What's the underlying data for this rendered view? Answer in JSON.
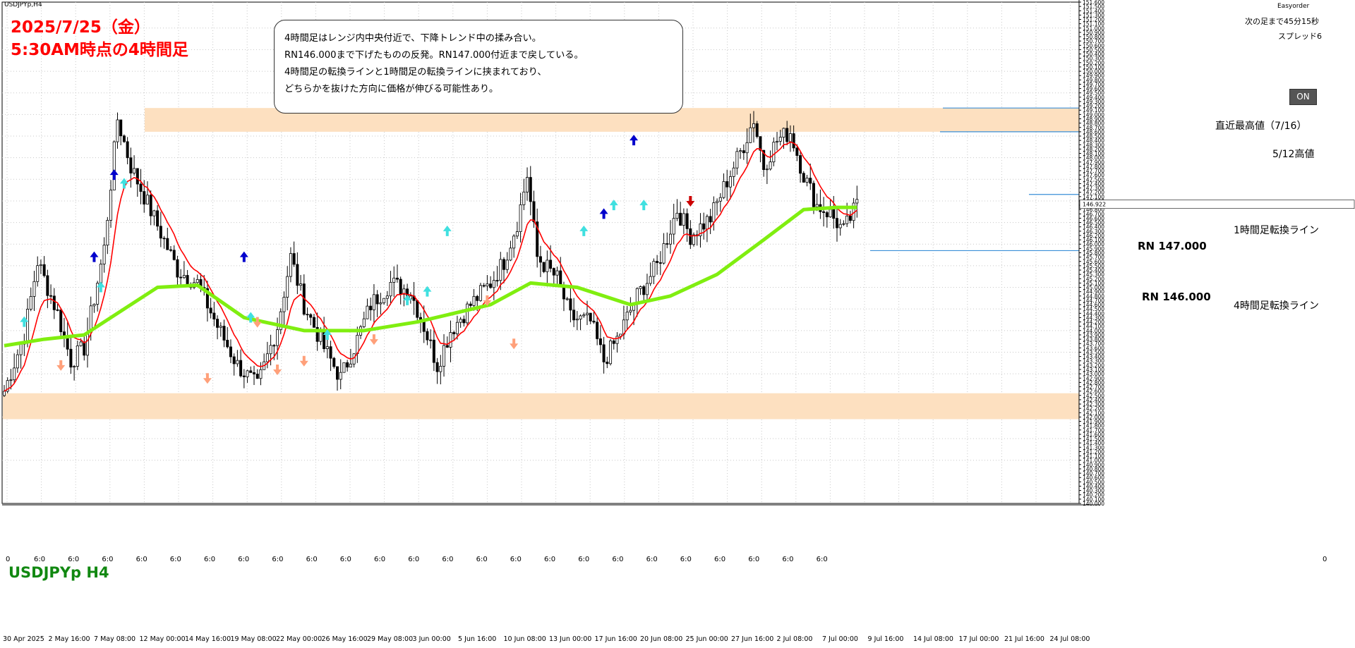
{
  "header": {
    "date_line": "2025/7/25（金）",
    "time_line": "5:30AM時点の4時間足"
  },
  "window": {
    "symbol_top": "USDJPYp,H4",
    "brand": "Easyorder",
    "next_bar": "次の足まで45分15秒",
    "spread": "スプレッド6"
  },
  "note": {
    "lines": [
      "4時間足はレンジ内中央付近で、下降トレンド中の揉み合い。",
      "RN146.000まで下げたものの反発。RN147.000付近まで戻している。",
      "4時間足の転換ラインと1時間足の転換ラインに挟まれており、",
      "どちらかを抜けた方向に価格が伸びる可能性あり。"
    ]
  },
  "on_button": "ON",
  "symbol_label": "USDJPYp H4",
  "chart_data": {
    "type": "candlestick",
    "symbol": "USDJPYp",
    "timeframe": "H4",
    "ylim": [
      140.0,
      151.6
    ],
    "y_ticks": [
      "151.600",
      "151.500",
      "151.400",
      "151.300",
      "151.200",
      "151.100",
      "151.000",
      "150.900",
      "150.800",
      "150.700",
      "150.600",
      "150.500",
      "150.400",
      "150.300",
      "150.200",
      "150.100",
      "150.000",
      "149.900",
      "149.800",
      "149.700",
      "149.600",
      "149.500",
      "149.400",
      "149.300",
      "149.200",
      "149.100",
      "149.000",
      "148.900",
      "148.800",
      "148.700",
      "148.600",
      "148.500",
      "148.400",
      "148.300",
      "148.200",
      "148.100",
      "148.000",
      "147.900",
      "147.800",
      "147.700",
      "147.600",
      "147.500",
      "147.400",
      "147.300",
      "147.200",
      "147.100",
      "147.000",
      "146.900",
      "146.800",
      "146.700",
      "146.600",
      "146.500",
      "146.400",
      "146.300",
      "146.200",
      "146.100",
      "146.000",
      "145.900",
      "145.800",
      "145.700",
      "145.600",
      "145.500",
      "145.400",
      "145.300",
      "145.200",
      "145.100",
      "145.000",
      "144.900",
      "144.800",
      "144.700",
      "144.600",
      "144.500",
      "144.400",
      "144.300",
      "144.200",
      "144.100",
      "144.000",
      "143.900",
      "143.800",
      "143.700",
      "143.600",
      "143.500",
      "143.400",
      "143.300",
      "143.200",
      "143.100",
      "143.000",
      "142.900",
      "142.800",
      "142.700",
      "142.600",
      "142.500",
      "142.400",
      "142.300",
      "142.200",
      "142.100",
      "142.000",
      "141.900",
      "141.800",
      "141.700",
      "141.600",
      "141.500",
      "141.400",
      "141.300",
      "141.200",
      "141.100",
      "141.000",
      "140.900",
      "140.800",
      "140.700",
      "140.600",
      "140.500",
      "140.400",
      "140.300",
      "140.200",
      "140.100",
      "140.000"
    ],
    "current_price": "146.922",
    "x_labels_dates": [
      "30 Apr 2025",
      "2 May 16:00",
      "7 May 08:00",
      "12 May 00:00",
      "14 May 16:00",
      "19 May 08:00",
      "22 May 00:00",
      "26 May 16:00",
      "29 May 08:00",
      "3 Jun 00:00",
      "5 Jun 16:00",
      "10 Jun 08:00",
      "13 Jun 00:00",
      "17 Jun 16:00",
      "20 Jun 08:00",
      "25 Jun 00:00",
      "27 Jun 16:00",
      "2 Jul 08:00",
      "7 Jul 00:00",
      "9 Jul 16:00",
      "14 Jul 08:00",
      "17 Jul 00:00",
      "21 Jul 16:00",
      "24 Jul 08:00"
    ],
    "x_labels_hour": "6:0",
    "x_labels_zero": "0",
    "x_hour_label_count": 24,
    "zones": [
      {
        "name": "upper-resistance-zone",
        "from": 148.6,
        "to": 149.15,
        "color": "#fde0c0"
      },
      {
        "name": "lower-support-zone",
        "from": 141.95,
        "to": 142.55,
        "color": "#fde0c0"
      }
    ],
    "lines": [
      {
        "label": "直近最高値（7/16）",
        "price": 149.15
      },
      {
        "label": "5/12高値",
        "price": 148.6
      },
      {
        "label": "1時間足転換ライン",
        "price": 147.15
      },
      {
        "label": "4時間足転換ライン",
        "price": 145.85
      }
    ],
    "round_numbers": [
      {
        "label": "RN 147.000",
        "price": 147.0
      },
      {
        "label": "RN 146.000",
        "price": 146.0
      }
    ],
    "close_path": [
      {
        "bar": 0,
        "price": 142.6
      },
      {
        "bar": 6,
        "price": 143.9
      },
      {
        "bar": 10,
        "price": 145.6
      },
      {
        "bar": 16,
        "price": 144.4
      },
      {
        "bar": 20,
        "price": 143.3
      },
      {
        "bar": 24,
        "price": 143.6
      },
      {
        "bar": 30,
        "price": 145.9
      },
      {
        "bar": 34,
        "price": 148.9
      },
      {
        "bar": 38,
        "price": 147.8
      },
      {
        "bar": 45,
        "price": 146.6
      },
      {
        "bar": 52,
        "price": 145.4
      },
      {
        "bar": 58,
        "price": 145.1
      },
      {
        "bar": 64,
        "price": 144.1
      },
      {
        "bar": 70,
        "price": 143.2
      },
      {
        "bar": 76,
        "price": 142.7
      },
      {
        "bar": 82,
        "price": 144.1
      },
      {
        "bar": 86,
        "price": 145.7
      },
      {
        "bar": 90,
        "price": 144.6
      },
      {
        "bar": 96,
        "price": 143.6
      },
      {
        "bar": 101,
        "price": 142.9
      },
      {
        "bar": 106,
        "price": 143.8
      },
      {
        "bar": 110,
        "price": 144.6
      },
      {
        "bar": 116,
        "price": 145.1
      },
      {
        "bar": 122,
        "price": 144.9
      },
      {
        "bar": 126,
        "price": 144.1
      },
      {
        "bar": 130,
        "price": 143.2
      },
      {
        "bar": 134,
        "price": 144.0
      },
      {
        "bar": 140,
        "price": 144.6
      },
      {
        "bar": 146,
        "price": 145.1
      },
      {
        "bar": 150,
        "price": 145.6
      },
      {
        "bar": 154,
        "price": 146.5
      },
      {
        "bar": 157,
        "price": 147.6
      },
      {
        "bar": 160,
        "price": 145.7
      },
      {
        "bar": 166,
        "price": 145.2
      },
      {
        "bar": 170,
        "price": 144.3
      },
      {
        "bar": 176,
        "price": 144.2
      },
      {
        "bar": 180,
        "price": 143.3
      },
      {
        "bar": 184,
        "price": 143.8
      },
      {
        "bar": 190,
        "price": 144.8
      },
      {
        "bar": 196,
        "price": 145.5
      },
      {
        "bar": 202,
        "price": 146.8
      },
      {
        "bar": 206,
        "price": 146.2
      },
      {
        "bar": 212,
        "price": 146.6
      },
      {
        "bar": 216,
        "price": 147.3
      },
      {
        "bar": 222,
        "price": 148.3
      },
      {
        "bar": 225,
        "price": 148.9
      },
      {
        "bar": 228,
        "price": 147.8
      },
      {
        "bar": 232,
        "price": 148.4
      },
      {
        "bar": 236,
        "price": 148.6
      },
      {
        "bar": 240,
        "price": 147.6
      },
      {
        "bar": 244,
        "price": 146.9
      },
      {
        "bar": 248,
        "price": 146.7
      },
      {
        "bar": 252,
        "price": 146.3
      },
      {
        "bar": 256,
        "price": 146.9
      }
    ],
    "series": [
      {
        "name": "",
        "color": "#ff0000",
        "role": "short-ma"
      },
      {
        "name": "",
        "color": "#80ee10",
        "role": "long-ma",
        "values": [
          {
            "bar": 0,
            "price": 143.65
          },
          {
            "bar": 12,
            "price": 143.8
          },
          {
            "bar": 24,
            "price": 143.9
          },
          {
            "bar": 36,
            "price": 144.5
          },
          {
            "bar": 46,
            "price": 145.0
          },
          {
            "bar": 58,
            "price": 145.05
          },
          {
            "bar": 72,
            "price": 144.3
          },
          {
            "bar": 90,
            "price": 144.0
          },
          {
            "bar": 108,
            "price": 144.0
          },
          {
            "bar": 124,
            "price": 144.2
          },
          {
            "bar": 146,
            "price": 144.6
          },
          {
            "bar": 158,
            "price": 145.1
          },
          {
            "bar": 172,
            "price": 145.0
          },
          {
            "bar": 188,
            "price": 144.6
          },
          {
            "bar": 200,
            "price": 144.8
          },
          {
            "bar": 214,
            "price": 145.3
          },
          {
            "bar": 228,
            "price": 146.1
          },
          {
            "bar": 240,
            "price": 146.8
          },
          {
            "bar": 250,
            "price": 146.85
          },
          {
            "bar": 256,
            "price": 146.85
          }
        ]
      }
    ],
    "signals": [
      {
        "bar": 6,
        "price": 144.2,
        "kind": "buy",
        "color": "#40e0e0"
      },
      {
        "bar": 17,
        "price": 143.2,
        "kind": "sell",
        "color": "#ffa07a"
      },
      {
        "bar": 27,
        "price": 145.7,
        "kind": "buy",
        "color": "#0000cc"
      },
      {
        "bar": 29,
        "price": 145.0,
        "kind": "buy",
        "color": "#40e0e0"
      },
      {
        "bar": 33,
        "price": 147.6,
        "kind": "buy",
        "color": "#0000cc"
      },
      {
        "bar": 36,
        "price": 147.4,
        "kind": "buy",
        "color": "#40e0e0"
      },
      {
        "bar": 61,
        "price": 142.9,
        "kind": "sell",
        "color": "#ffa07a"
      },
      {
        "bar": 72,
        "price": 145.7,
        "kind": "buy",
        "color": "#0000cc"
      },
      {
        "bar": 74,
        "price": 144.3,
        "kind": "buy",
        "color": "#40e0e0"
      },
      {
        "bar": 76,
        "price": 144.2,
        "kind": "sell",
        "color": "#ffa07a"
      },
      {
        "bar": 82,
        "price": 143.1,
        "kind": "sell",
        "color": "#ffa07a"
      },
      {
        "bar": 90,
        "price": 143.3,
        "kind": "sell",
        "color": "#ffa07a"
      },
      {
        "bar": 97,
        "price": 143.9,
        "kind": "buy",
        "color": "#40e0e0"
      },
      {
        "bar": 111,
        "price": 143.8,
        "kind": "sell",
        "color": "#ffa07a"
      },
      {
        "bar": 121,
        "price": 144.7,
        "kind": "buy",
        "color": "#40e0e0"
      },
      {
        "bar": 127,
        "price": 144.9,
        "kind": "buy",
        "color": "#40e0e0"
      },
      {
        "bar": 133,
        "price": 146.3,
        "kind": "buy",
        "color": "#40e0e0"
      },
      {
        "bar": 145,
        "price": 144.7,
        "kind": "sell",
        "color": "#ffa07a"
      },
      {
        "bar": 153,
        "price": 143.7,
        "kind": "sell",
        "color": "#ffa07a"
      },
      {
        "bar": 174,
        "price": 146.3,
        "kind": "buy",
        "color": "#40e0e0"
      },
      {
        "bar": 180,
        "price": 146.7,
        "kind": "buy",
        "color": "#0000cc"
      },
      {
        "bar": 183,
        "price": 146.9,
        "kind": "buy",
        "color": "#40e0e0"
      },
      {
        "bar": 189,
        "price": 148.4,
        "kind": "buy",
        "color": "#0000cc"
      },
      {
        "bar": 192,
        "price": 146.9,
        "kind": "buy",
        "color": "#40e0e0"
      },
      {
        "bar": 206,
        "price": 147.0,
        "kind": "sell",
        "color": "#cc0000"
      }
    ]
  }
}
